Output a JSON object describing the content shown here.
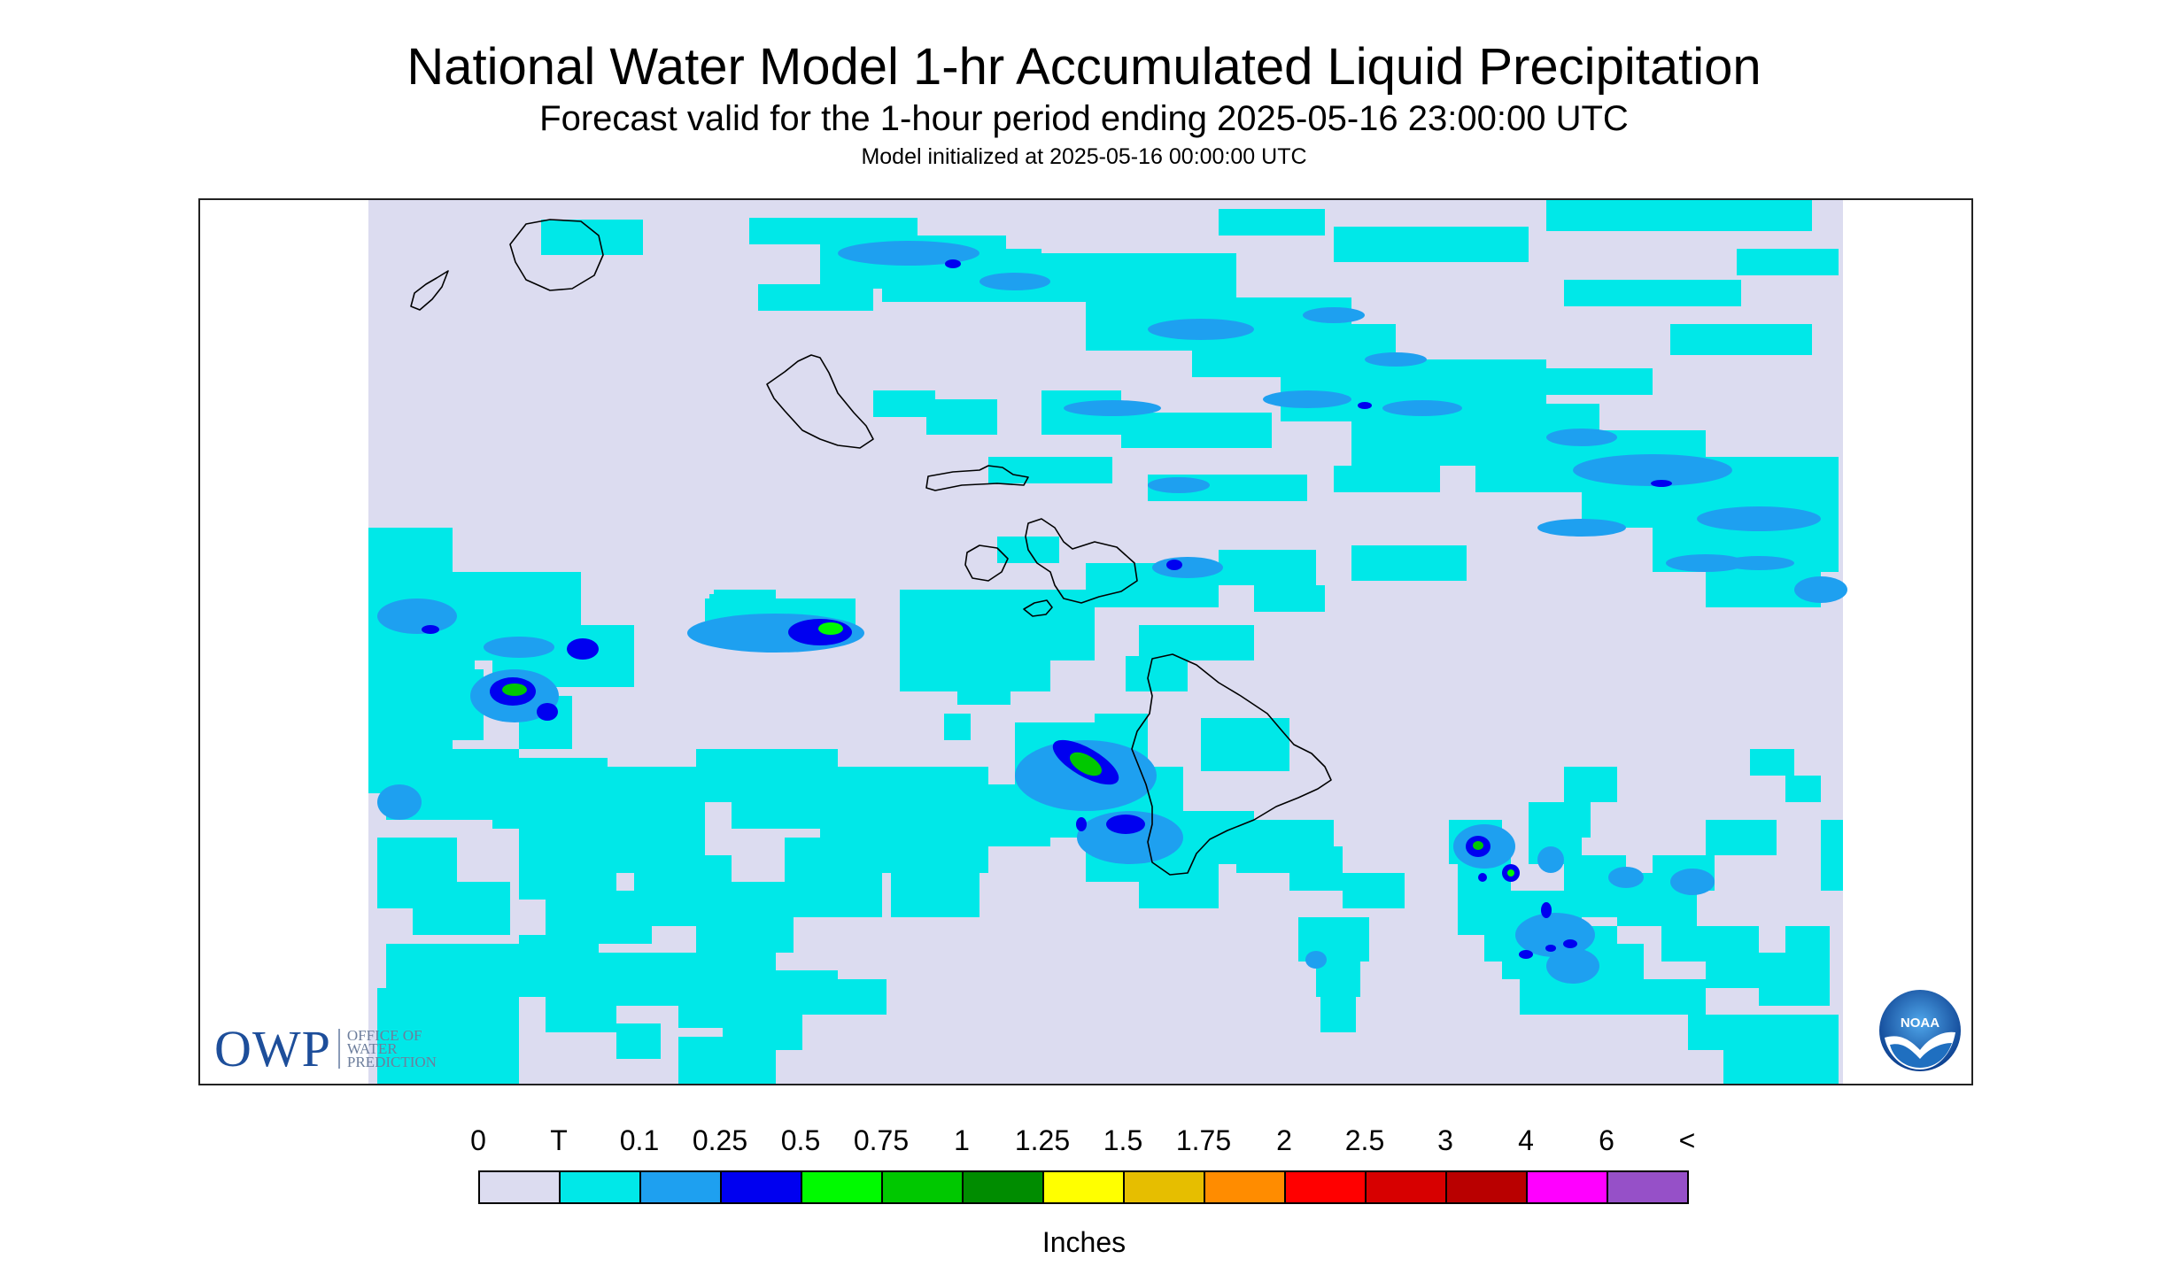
{
  "title": "National Water Model 1-hr Accumulated Liquid Precipitation",
  "subtitle": "Forecast valid for the 1-hour period ending 2025-05-16 23:00:00 UTC",
  "init_line": "Model initialized at 2025-05-16 00:00:00 UTC",
  "map": {
    "region": "Hawaiian Islands",
    "background_color": "#dcdcf0",
    "land_outline_color": "#000000"
  },
  "logos": {
    "owp_letters": "OWP",
    "owp_sub": [
      "OFFICE OF",
      "WATER",
      "PREDICTION"
    ],
    "noaa": "NOAA"
  },
  "legend": {
    "labels": [
      "0",
      "T",
      "0.1",
      "0.25",
      "0.5",
      "0.75",
      "1",
      "1.25",
      "1.5",
      "1.75",
      "2",
      "2.5",
      "3",
      "4",
      "6",
      "<"
    ],
    "colors": [
      "#dcdcf0",
      "#00e8e8",
      "#1ea0f0",
      "#0000f0",
      "#00fa00",
      "#00c800",
      "#008c00",
      "#ffff00",
      "#e6be00",
      "#ff8c00",
      "#ff0000",
      "#d70000",
      "#b90000",
      "#ff00ff",
      "#9650c8"
    ],
    "units": "Inches"
  }
}
